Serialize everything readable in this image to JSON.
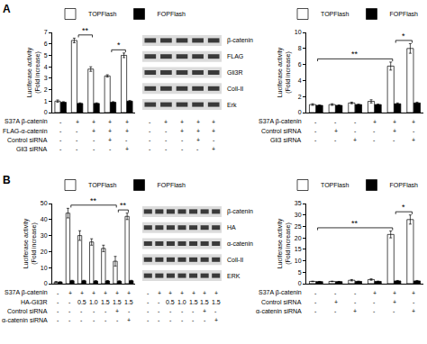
{
  "panel_labels": [
    "A",
    "B"
  ],
  "chart_data": [
    {
      "type": "bar",
      "ylabel": "Luciferase activity (Fold increase)",
      "ylim": [
        0,
        7
      ],
      "yticks": [
        0,
        1,
        2,
        3,
        4,
        5,
        6,
        7
      ],
      "grid": false,
      "tick_labels": "y",
      "legend": "top",
      "series": [
        {
          "name": "TOPFlash",
          "color": "#ffffff",
          "values": [
            1.0,
            6.3,
            3.8,
            3.2,
            5.0
          ],
          "errors": [
            0.1,
            0.2,
            0.2,
            0.1,
            0.2
          ]
        },
        {
          "name": "FOPFlash",
          "color": "#000000",
          "values": [
            0.9,
            0.8,
            0.8,
            0.9,
            1.0
          ],
          "errors": [
            0.05,
            0.05,
            0.05,
            0.05,
            0.05
          ]
        }
      ],
      "conditions": [
        {
          "label": "S37A β-catenin",
          "values": [
            "-",
            "+",
            "+",
            "+",
            "+"
          ]
        },
        {
          "label": "FLAG-α-catenin",
          "values": [
            "-",
            "-",
            "+",
            "+",
            "+"
          ]
        },
        {
          "label": "Control siRNA",
          "values": [
            "-",
            "-",
            "-",
            "+",
            "-"
          ]
        },
        {
          "label": "Gli3 siRNA",
          "values": [
            "-",
            "-",
            "-",
            "-",
            "+"
          ]
        }
      ],
      "significance": [
        {
          "from": 1,
          "to": 2,
          "label": "**"
        },
        {
          "from": 3,
          "to": 4,
          "label": "*"
        }
      ]
    },
    {
      "type": "bar",
      "ylabel": "Luciferase activity (Fold increase)",
      "ylim": [
        0,
        10
      ],
      "yticks": [
        0,
        2,
        4,
        6,
        8,
        10
      ],
      "grid": false,
      "tick_labels": "y",
      "legend": "top",
      "series": [
        {
          "name": "TOPFlash",
          "color": "#ffffff",
          "values": [
            1.0,
            1.0,
            1.2,
            1.4,
            5.8,
            8.0
          ],
          "errors": [
            0.1,
            0.1,
            0.1,
            0.2,
            0.5,
            0.6
          ]
        },
        {
          "name": "FOPFlash",
          "color": "#000000",
          "values": [
            0.9,
            0.9,
            1.0,
            1.0,
            1.1,
            1.2
          ],
          "errors": [
            0.05,
            0.05,
            0.05,
            0.05,
            0.1,
            0.1
          ]
        }
      ],
      "conditions": [
        {
          "label": "S37A β-catenin",
          "values": [
            "-",
            "-",
            "-",
            "+",
            "+",
            "+"
          ]
        },
        {
          "label": "Control siRNA",
          "values": [
            "-",
            "+",
            "-",
            "-",
            "+",
            "-"
          ]
        },
        {
          "label": "Gli3 siRNA",
          "values": [
            "-",
            "-",
            "+",
            "-",
            "-",
            "+"
          ]
        }
      ],
      "significance": [
        {
          "from": 0,
          "to": 4,
          "label": "**"
        },
        {
          "from": 4,
          "to": 5,
          "label": "*"
        }
      ]
    },
    {
      "type": "bar",
      "ylabel": "Luciferase activity (Fold increase)",
      "ylim": [
        0,
        50
      ],
      "yticks": [
        0,
        10,
        20,
        30,
        40,
        50
      ],
      "grid": false,
      "tick_labels": "y",
      "legend": "top",
      "series": [
        {
          "name": "TOPFlash",
          "color": "#ffffff",
          "values": [
            1.0,
            44.0,
            30.0,
            26.0,
            22.0,
            14.0,
            42.0
          ],
          "errors": [
            0.3,
            3.0,
            3.0,
            2.0,
            2.0,
            3.0,
            2.0
          ]
        },
        {
          "name": "FOPFlash",
          "color": "#000000",
          "values": [
            1.0,
            1.8,
            1.8,
            1.6,
            1.7,
            1.5,
            1.8
          ],
          "errors": [
            0.2,
            0.3,
            0.3,
            0.3,
            0.3,
            0.3,
            0.3
          ]
        }
      ],
      "conditions": [
        {
          "label": "S37A β-catenin",
          "values": [
            "-",
            "+",
            "+",
            "+",
            "+",
            "+",
            "+"
          ]
        },
        {
          "label": "HA-Gli3R",
          "values": [
            "-",
            "-",
            "0.5",
            "1.0",
            "1.5",
            "1.5",
            "1.5"
          ]
        },
        {
          "label": "Control siRNA",
          "values": [
            "-",
            "-",
            "-",
            "-",
            "-",
            "+",
            "-"
          ]
        },
        {
          "label": "α-catenin siRNA",
          "values": [
            "-",
            "-",
            "-",
            "-",
            "-",
            "-",
            "+"
          ]
        }
      ],
      "significance": [
        {
          "from": 1,
          "to": 5,
          "label": "**"
        },
        {
          "from": 5,
          "to": 6,
          "label": "**"
        }
      ]
    },
    {
      "type": "bar",
      "ylabel": "Luciferase activity (Fold increase)",
      "ylim": [
        0,
        35
      ],
      "yticks": [
        0,
        5,
        10,
        15,
        20,
        25,
        30,
        35
      ],
      "grid": false,
      "tick_labels": "y",
      "legend": "top",
      "series": [
        {
          "name": "TOPFlash",
          "color": "#ffffff",
          "values": [
            1.0,
            1.0,
            1.5,
            1.8,
            21.5,
            28.0
          ],
          "errors": [
            0.1,
            0.1,
            0.3,
            0.3,
            1.5,
            2.0
          ]
        },
        {
          "name": "FOPFlash",
          "color": "#000000",
          "values": [
            0.9,
            0.9,
            1.0,
            1.0,
            1.2,
            1.2
          ],
          "errors": [
            0.1,
            0.1,
            0.1,
            0.1,
            0.2,
            0.2
          ]
        }
      ],
      "conditions": [
        {
          "label": "S37A β-catenin",
          "values": [
            "-",
            "-",
            "-",
            "+",
            "+",
            "+"
          ]
        },
        {
          "label": "Control siRNA",
          "values": [
            "-",
            "+",
            "-",
            "-",
            "+",
            "-"
          ]
        },
        {
          "label": "α-catenin siRNA",
          "values": [
            "-",
            "-",
            "+",
            "-",
            "-",
            "+"
          ]
        }
      ],
      "significance": [
        {
          "from": 0,
          "to": 4,
          "label": "**"
        },
        {
          "from": 4,
          "to": 5,
          "label": "*"
        }
      ]
    }
  ],
  "blots": [
    {
      "labels": [
        "β-catenin",
        "FLAG",
        "Gli3R",
        "Coll-II",
        "Erk"
      ],
      "conditions": [
        [
          "-",
          "+",
          "+",
          "+",
          "+"
        ],
        [
          "-",
          "-",
          "+",
          "+",
          "+"
        ],
        [
          "-",
          "-",
          "-",
          "+",
          "-"
        ],
        [
          "-",
          "-",
          "-",
          "-",
          "+"
        ]
      ]
    },
    {
      "labels": [
        "β-catenin",
        "HA",
        "α-catenin",
        "Coll-II",
        "ERK"
      ],
      "conditions": [
        [
          "-",
          "+",
          "+",
          "+",
          "+",
          "+",
          "+"
        ],
        [
          "-",
          "-",
          "0.5",
          "1.0",
          "1.5",
          "1.5",
          "1.5"
        ],
        [
          "-",
          "-",
          "-",
          "-",
          "-",
          "+",
          "-"
        ],
        [
          "-",
          "-",
          "-",
          "-",
          "-",
          "-",
          "+"
        ]
      ]
    }
  ]
}
